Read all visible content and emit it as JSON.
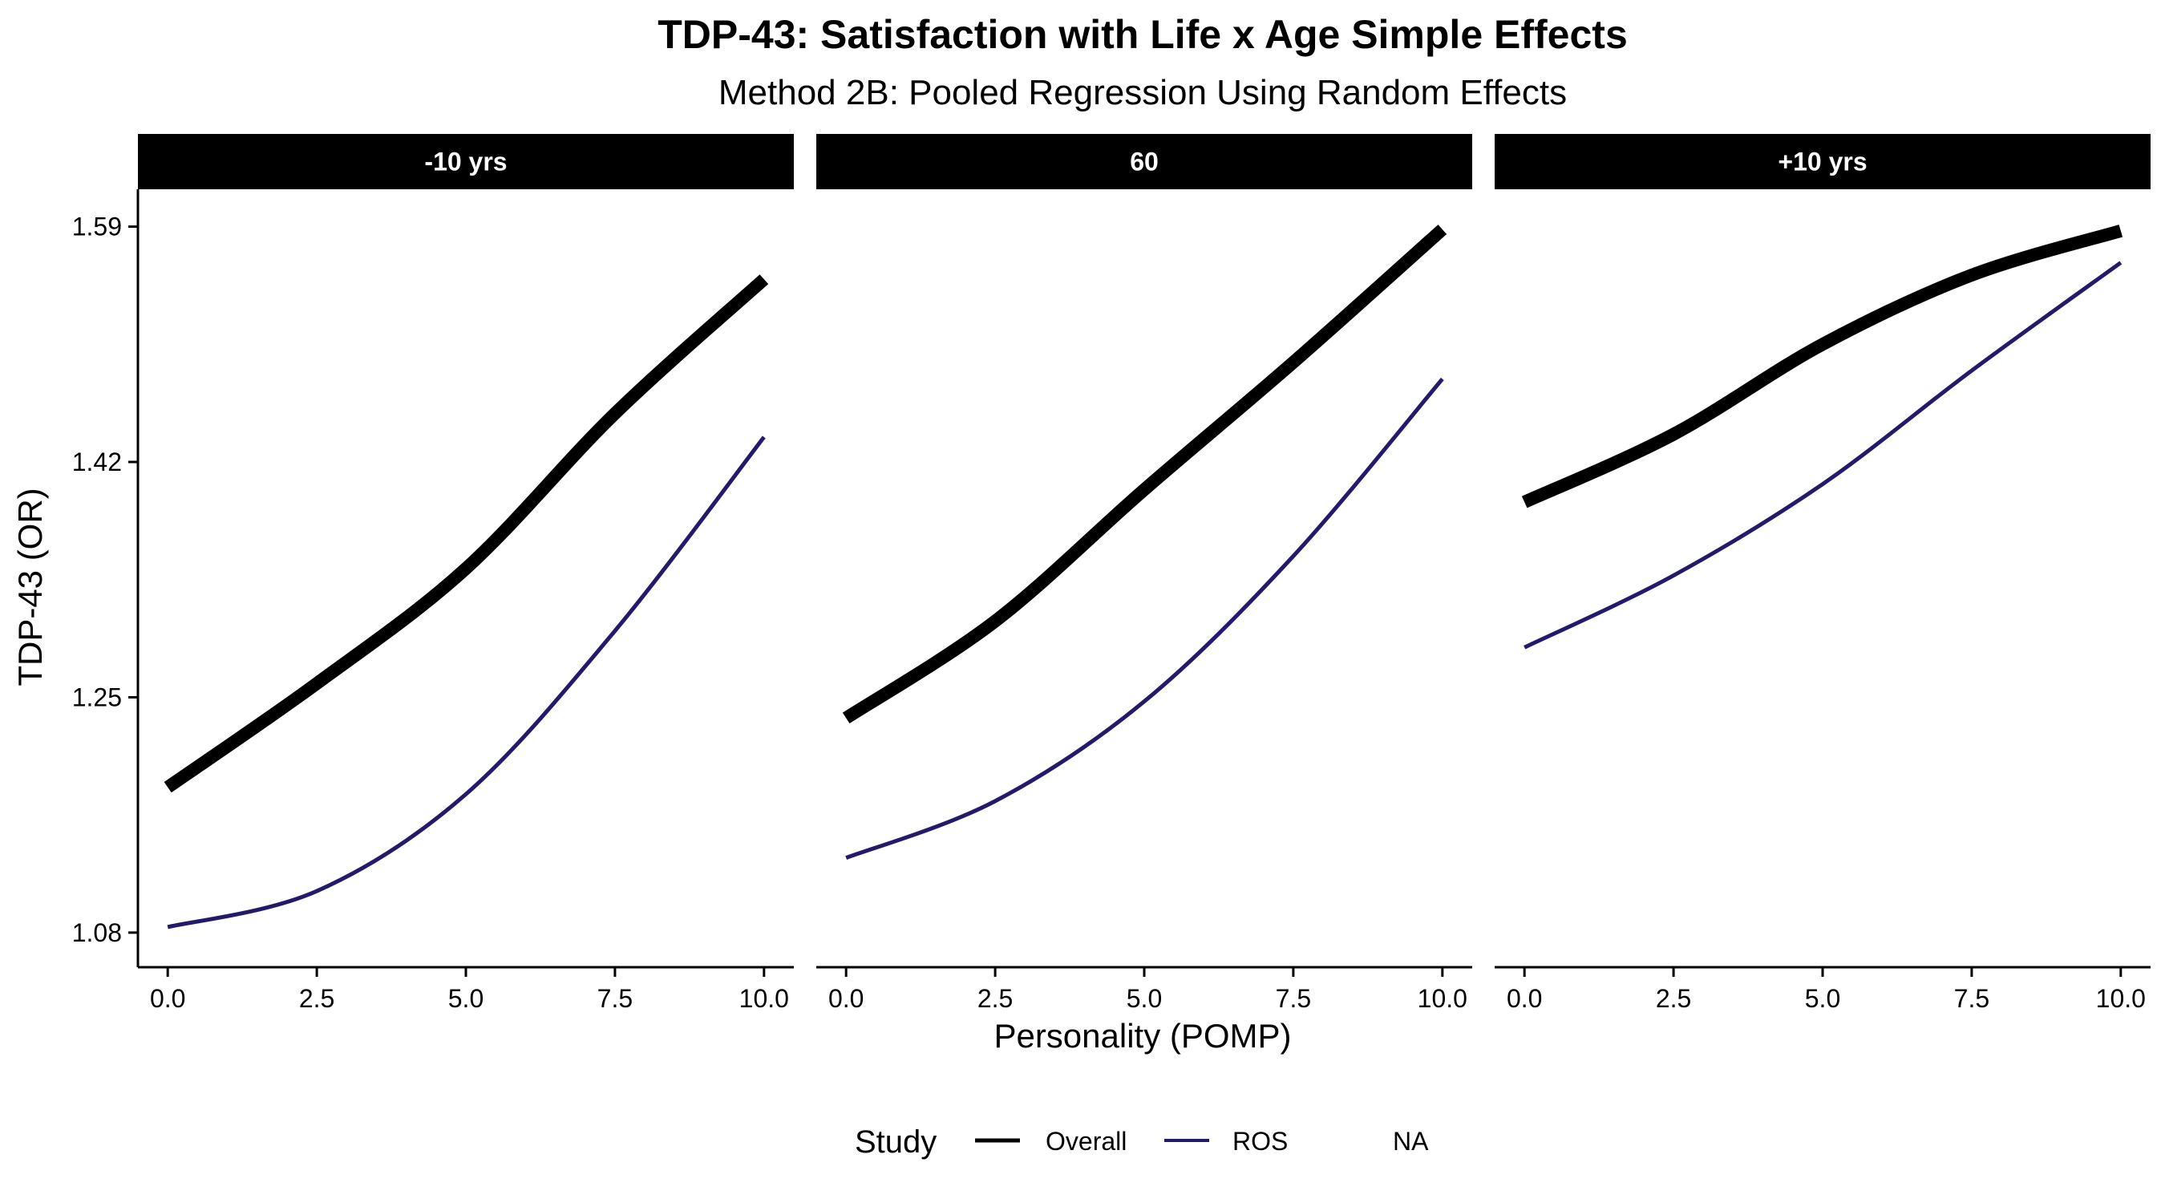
{
  "chart_data": {
    "type": "line",
    "title": "TDP-43: Satisfaction with Life x Age Simple Effects",
    "subtitle": "Method 2B: Pooled Regression Using Random Effects",
    "xlabel": "Personality (POMP)",
    "ylabel": "TDP-43 (OR)",
    "xlim": [
      -0.5,
      10.5
    ],
    "ylim": [
      1.055,
      1.617
    ],
    "xticks": [
      "0.0",
      "2.5",
      "5.0",
      "7.5",
      "10.0"
    ],
    "xtick_values": [
      0,
      2.5,
      5,
      7.5,
      10
    ],
    "yticks": [
      "1.08",
      "1.25",
      "1.42",
      "1.59"
    ],
    "ytick_values": [
      1.08,
      1.25,
      1.42,
      1.59
    ],
    "grid": false,
    "legend": {
      "title": "Study",
      "position": "bottom",
      "entries": [
        {
          "label": "Overall",
          "color": "#000000"
        },
        {
          "label": "ROS",
          "color": "#231a6b"
        },
        {
          "label": "NA",
          "color": null
        }
      ]
    },
    "colors": {
      "Overall": "#000000",
      "ROS": "#231a6b"
    },
    "panels": [
      {
        "label": "-10 yrs",
        "series": [
          {
            "name": "Overall",
            "x": [
              0,
              2.5,
              5,
              7.5,
              10
            ],
            "y": [
              1.185,
              1.26,
              1.343,
              1.455,
              1.552
            ]
          },
          {
            "name": "ROS",
            "x": [
              0,
              2.5,
              5,
              7.5,
              10
            ],
            "y": [
              1.084,
              1.11,
              1.18,
              1.298,
              1.438
            ]
          }
        ]
      },
      {
        "label": "60",
        "series": [
          {
            "name": "Overall",
            "x": [
              0,
              2.5,
              5,
              7.5,
              10
            ],
            "y": [
              1.235,
              1.305,
              1.4,
              1.492,
              1.588
            ]
          },
          {
            "name": "ROS",
            "x": [
              0,
              2.5,
              5,
              7.5,
              10
            ],
            "y": [
              1.134,
              1.175,
              1.247,
              1.352,
              1.48
            ]
          }
        ]
      },
      {
        "label": "+10 yrs",
        "series": [
          {
            "name": "Overall",
            "x": [
              0,
              2.5,
              5,
              7.5,
              10
            ],
            "y": [
              1.391,
              1.44,
              1.505,
              1.555,
              1.587
            ]
          },
          {
            "name": "ROS",
            "x": [
              0,
              2.5,
              5,
              7.5,
              10
            ],
            "y": [
              1.286,
              1.338,
              1.404,
              1.486,
              1.564
            ]
          }
        ]
      }
    ]
  }
}
